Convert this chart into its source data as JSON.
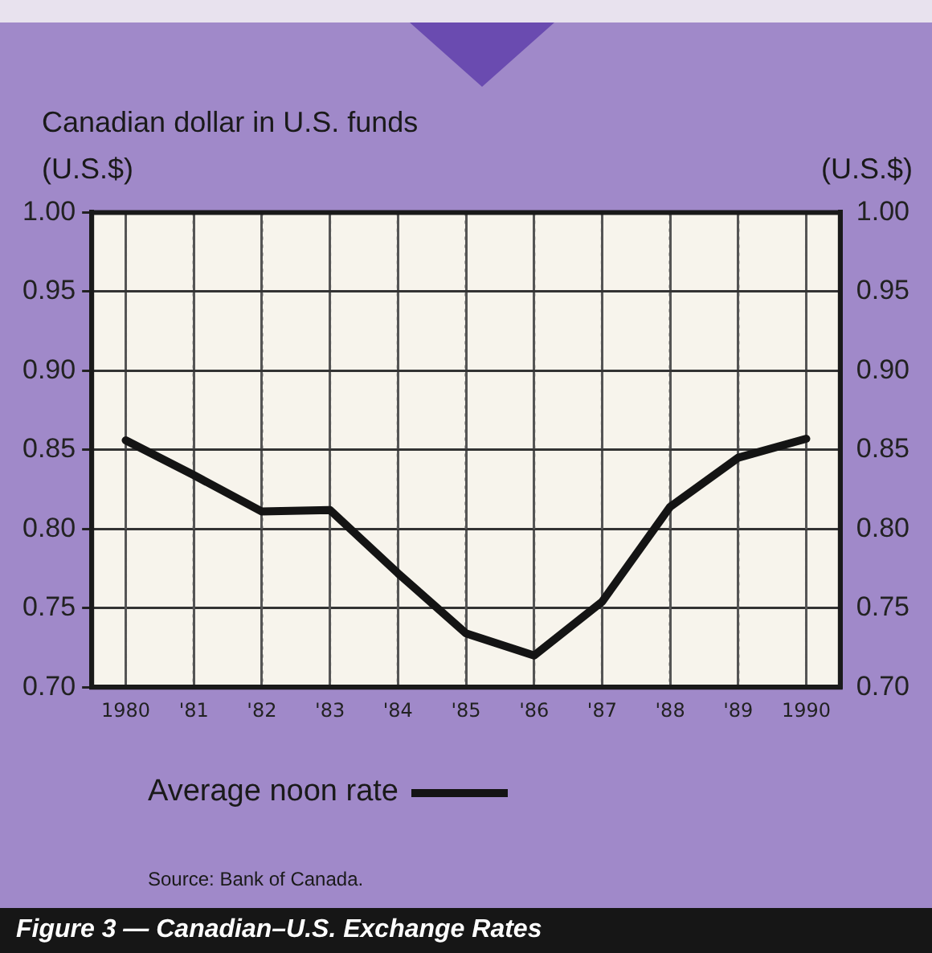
{
  "chart_data": {
    "type": "line",
    "title": "Figure 3 — Canadian–U.S. Exchange Rates",
    "subtitle": "Canadian dollar in U.S. funds",
    "ylabel": "(U.S.$)",
    "y2label": "(U.S.$)",
    "categories": [
      "1980",
      "'81",
      "'82",
      "'83",
      "'84",
      "'85",
      "'86",
      "'87",
      "'88",
      "'89",
      "1990"
    ],
    "series": [
      {
        "name": "Average noon rate",
        "color": "#141414",
        "values": [
          0.856,
          0.834,
          0.811,
          0.812,
          0.772,
          0.734,
          0.72,
          0.754,
          0.814,
          0.845,
          0.857
        ]
      }
    ],
    "ylim": [
      0.7,
      1.0
    ],
    "yticks": [
      {
        "value": 0.7,
        "label": "0.70"
      },
      {
        "value": 0.75,
        "label": "0.75"
      },
      {
        "value": 0.8,
        "label": "0.80"
      },
      {
        "value": 0.85,
        "label": "0.85"
      },
      {
        "value": 0.9,
        "label": "0.90"
      },
      {
        "value": 0.95,
        "label": "0.95"
      },
      {
        "value": 1.0,
        "label": "1.00"
      }
    ],
    "y2lim": [
      0.7,
      1.0
    ],
    "y2ticks": [
      {
        "value": 0.7,
        "label": "0.70"
      },
      {
        "value": 0.75,
        "label": "0.75"
      },
      {
        "value": 0.8,
        "label": "0.80"
      },
      {
        "value": 0.85,
        "label": "0.85"
      },
      {
        "value": 0.9,
        "label": "0.90"
      },
      {
        "value": 0.95,
        "label": "0.95"
      },
      {
        "value": 1.0,
        "label": "1.00"
      }
    ],
    "grid": true,
    "legend": "bottom",
    "marker": "none",
    "line_style": "solid",
    "annotations": [
      "Source: Bank of Canada."
    ]
  }
}
